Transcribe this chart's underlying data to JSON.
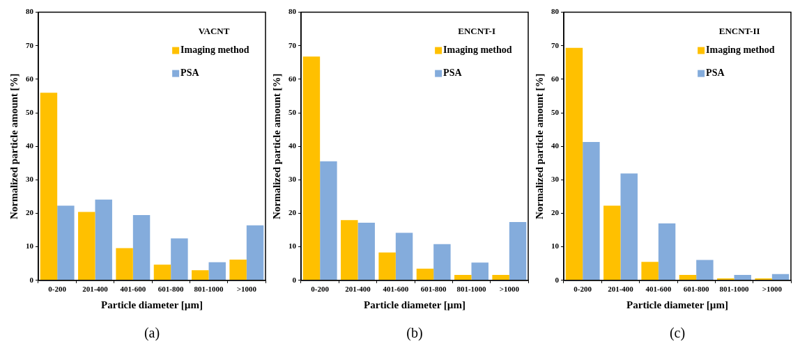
{
  "chart_data": [
    {
      "type": "bar",
      "title": "VACNT",
      "xlabel": "Particle diameter [µm]",
      "ylabel": "Normalized particle amount [%]",
      "categories": [
        "0-200",
        "201-400",
        "401-600",
        "601-800",
        "801-1000",
        ">1000"
      ],
      "series": [
        {
          "name": "Imaging method",
          "color": "#ffc000",
          "values": [
            56,
            20.4,
            9.6,
            4.7,
            3.0,
            6.2
          ]
        },
        {
          "name": "PSA",
          "color": "#84acdc",
          "values": [
            22.3,
            24.1,
            19.5,
            12.5,
            5.4,
            16.4
          ]
        }
      ],
      "ylim": [
        0,
        80
      ],
      "yticks": [
        0,
        10,
        20,
        30,
        40,
        50,
        60,
        70,
        80
      ],
      "legend": "top right",
      "annotations": [
        "(a)"
      ]
    },
    {
      "type": "bar",
      "title": "ENCNT-I",
      "xlabel": "Particle diameter [µm]",
      "ylabel": "Normalized particle amount [%]",
      "categories": [
        "0-200",
        "201-400",
        "401-600",
        "601-800",
        "801-1000",
        ">1000"
      ],
      "series": [
        {
          "name": "Imaging method",
          "color": "#ffc000",
          "values": [
            66.8,
            18.0,
            8.3,
            3.5,
            1.6,
            1.6
          ]
        },
        {
          "name": "PSA",
          "color": "#84acdc",
          "values": [
            35.5,
            17.2,
            14.2,
            10.8,
            5.3,
            17.4
          ]
        }
      ],
      "ylim": [
        0,
        80
      ],
      "yticks": [
        0,
        10,
        20,
        30,
        40,
        50,
        60,
        70,
        80
      ],
      "legend": "top right",
      "annotations": [
        "(b)"
      ]
    },
    {
      "type": "bar",
      "title": "ENCNT-II",
      "xlabel": "Particle diameter [µm]",
      "ylabel": "Normalized particle amount [%]",
      "categories": [
        "0-200",
        "201-400",
        "401-600",
        "601-800",
        "801-1000",
        ">1000"
      ],
      "series": [
        {
          "name": "Imaging method",
          "color": "#ffc000",
          "values": [
            69.4,
            22.3,
            5.5,
            1.6,
            0.6,
            0.6
          ]
        },
        {
          "name": "PSA",
          "color": "#84acdc",
          "values": [
            41.3,
            31.9,
            17.0,
            6.1,
            1.6,
            1.9
          ]
        }
      ],
      "ylim": [
        0,
        80
      ],
      "yticks": [
        0,
        10,
        20,
        30,
        40,
        50,
        60,
        70,
        80
      ],
      "legend": "top right",
      "annotations": [
        "(c)"
      ]
    }
  ]
}
